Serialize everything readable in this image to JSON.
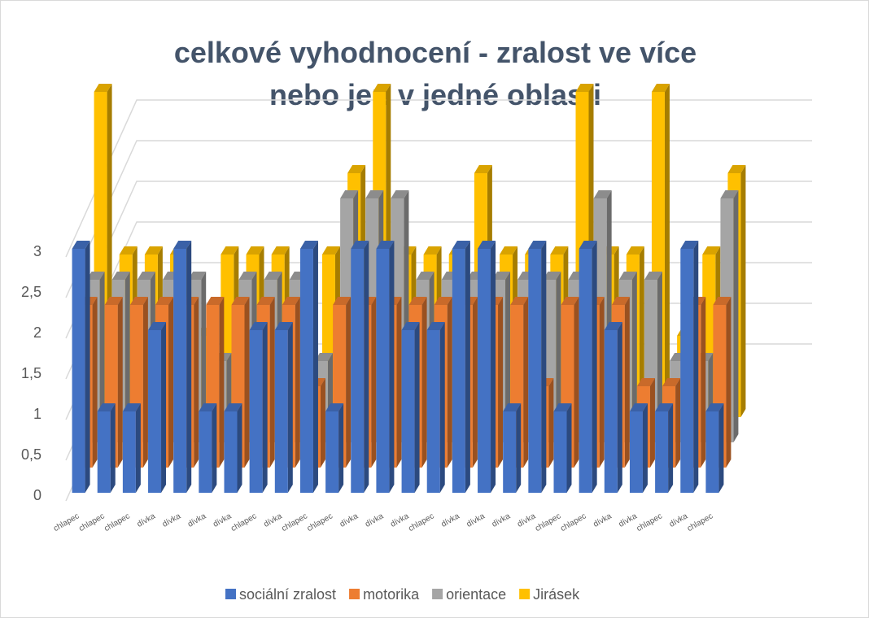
{
  "chart_data": {
    "type": "bar3d",
    "title": "celkové vyhodnocení - zralost ve více nebo jen v jedné oblasti",
    "categories": [
      "chlapec",
      "chlapec",
      "chlapec",
      "dívka",
      "dívka",
      "dívka",
      "dívka",
      "chlapec",
      "dívka",
      "chlapec",
      "chlapec",
      "dívka",
      "dívka",
      "dívka",
      "chlapec",
      "dívka",
      "dívka",
      "dívka",
      "dívka",
      "chlapec",
      "chlapec",
      "dívka",
      "dívka",
      "chlapec",
      "dívka",
      "chlapec"
    ],
    "series": [
      {
        "name": "sociální zralost",
        "color": "#4472c4",
        "values": [
          3,
          1,
          1,
          2,
          3,
          1,
          1,
          2,
          2,
          3,
          1,
          3,
          3,
          2,
          2,
          3,
          3,
          1,
          3,
          1,
          3,
          2,
          1,
          1,
          3,
          1
        ]
      },
      {
        "name": "motorika",
        "color": "#ed7d31",
        "values": [
          2,
          2,
          2,
          2,
          2,
          2,
          2,
          2,
          2,
          1,
          2,
          2,
          2,
          2,
          2,
          2,
          2,
          2,
          1,
          2,
          2,
          2,
          1,
          1,
          2,
          2
        ]
      },
      {
        "name": "orientace",
        "color": "#a5a5a5",
        "values": [
          2,
          2,
          2,
          2,
          2,
          1,
          2,
          2,
          2,
          1,
          3,
          3,
          3,
          2,
          2,
          2,
          2,
          2,
          2,
          2,
          3,
          2,
          2,
          1,
          1,
          3
        ]
      },
      {
        "name": "Jirásek",
        "color": "#ffc000",
        "values": [
          4,
          2,
          2,
          2,
          1,
          2,
          2,
          2,
          1,
          2,
          3,
          4,
          2,
          2,
          2,
          3,
          2,
          2,
          2,
          4,
          2,
          2,
          4,
          1,
          2,
          3
        ]
      }
    ],
    "ylim": [
      0,
      3
    ],
    "yticks": [
      0,
      {
        "value": 0.5,
        "label": "0,5"
      },
      1,
      {
        "value": 1.5,
        "label": "1,5"
      },
      2,
      {
        "value": 2.5,
        "label": "2,5"
      },
      3
    ],
    "grid": true,
    "legend": "bottom"
  }
}
